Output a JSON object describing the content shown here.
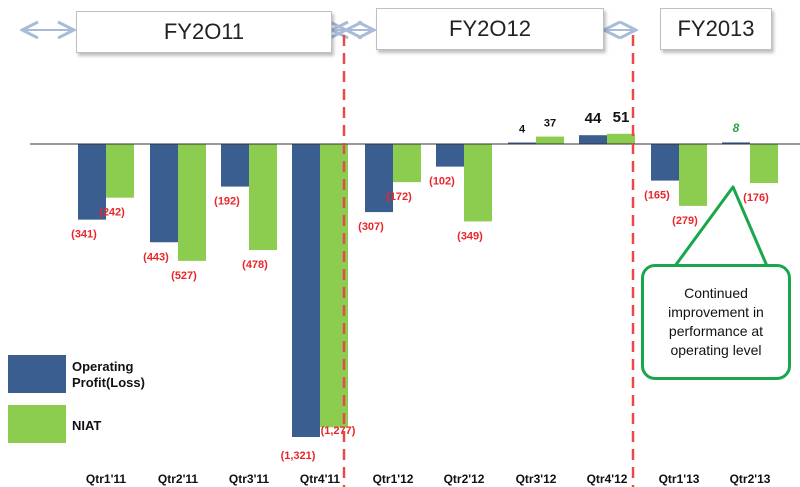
{
  "fiscal_years": [
    {
      "label": "FY2O11"
    },
    {
      "label": "FY2O12"
    },
    {
      "label": "FY2013"
    }
  ],
  "legend": {
    "operating": "Operating\nProfit(Loss)",
    "niat": "NIAT"
  },
  "callout": {
    "text": "Continued improvement in performance at operating level"
  },
  "colors": {
    "operating": "#3a5e8f",
    "niat": "#8ccd4f",
    "negative_label": "#e8262a",
    "positive_label": "#111111",
    "highlight_label": "#2aa34a",
    "divider": "#e84a4a",
    "callout_border": "#1aa64a"
  },
  "chart_data": {
    "type": "bar",
    "categories": [
      "Qtr1'11",
      "Qtr2'11",
      "Qtr3'11",
      "Qtr4'11",
      "Qtr1'12",
      "Qtr2'12",
      "Qtr3'12",
      "Qtr4'12",
      "Qtr1'13",
      "Qtr2'13"
    ],
    "series": [
      {
        "name": "Operating Profit(Loss)",
        "values": [
          -341,
          -443,
          -192,
          -1321,
          -307,
          -102,
          4,
          44,
          -165,
          8
        ],
        "labels": [
          "(341)",
          "(443)",
          "(192)",
          "(1,321)",
          "(307)",
          "(102)",
          "4",
          "44",
          "(165)",
          "8"
        ]
      },
      {
        "name": "NIAT",
        "values": [
          -242,
          -527,
          -478,
          -1277,
          -172,
          -349,
          37,
          51,
          -279,
          -176
        ],
        "labels": [
          "(242)",
          "(527)",
          "(478)",
          "(1,277)",
          "(172)",
          "(349)",
          "37",
          "51",
          "(279)",
          "(176)"
        ]
      }
    ],
    "grid": false,
    "legend_position": "bottom-left"
  }
}
